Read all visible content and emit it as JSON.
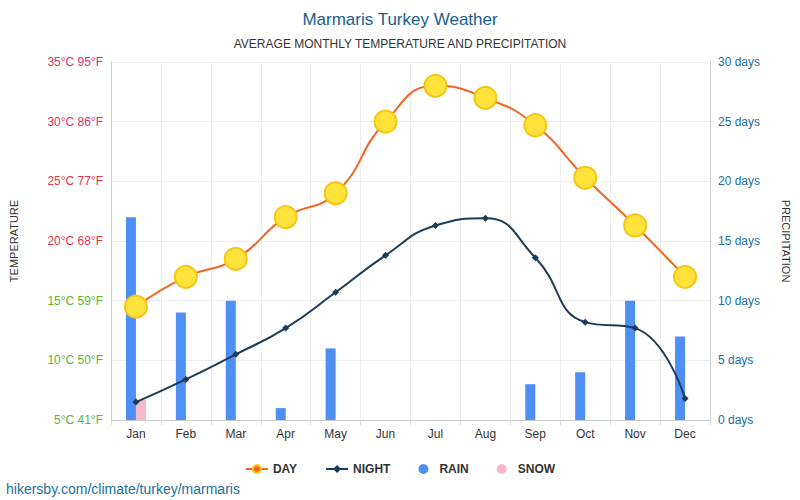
{
  "chart_data": {
    "type": "line",
    "title": "Marmaris Turkey Weather",
    "subtitle": "AVERAGE MONTHLY TEMPERATURE AND PRECIPITATION",
    "ylabel": "TEMPERATURE",
    "y2label": "PRECIPITATION",
    "annotations": [
      "hikersby.com/climate/turkey/marmaris"
    ],
    "categories": [
      "Jan",
      "Feb",
      "Mar",
      "Apr",
      "May",
      "Jun",
      "Jul",
      "Aug",
      "Sep",
      "Oct",
      "Nov",
      "Dec"
    ],
    "series": [
      {
        "name": "DAY",
        "type": "line",
        "color": "#f26522",
        "marker": "circle",
        "line_style": "solid",
        "values": [
          14.5,
          17,
          18.5,
          22,
          24,
          30,
          33,
          32,
          29.7,
          25.3,
          21.3,
          17
        ]
      },
      {
        "name": "NIGHT",
        "type": "line",
        "color": "#1a3c5a",
        "marker": "diamond",
        "line_style": "solid",
        "values": [
          6.5,
          8.4,
          10.5,
          12.7,
          15.7,
          18.8,
          21.3,
          21.9,
          18.6,
          13.2,
          12.7,
          6.8
        ]
      },
      {
        "name": "RAIN",
        "type": "bar",
        "axis": "y2",
        "color": "#4e8ff5",
        "values": [
          17,
          9,
          10,
          1,
          6,
          0,
          0,
          0,
          3,
          4,
          10,
          7
        ]
      },
      {
        "name": "SNOW",
        "type": "bar",
        "axis": "y2",
        "color": "#f7b9c8",
        "values": [
          1.7,
          0,
          0,
          0,
          0,
          0,
          0,
          0,
          0,
          0,
          0,
          0
        ]
      }
    ],
    "ylim": [
      5,
      35
    ],
    "yticks": [
      {
        "value": 5,
        "label": "5°C 41°F"
      },
      {
        "value": 10,
        "label": "10°C 50°F"
      },
      {
        "value": 15,
        "label": "15°C 59°F"
      },
      {
        "value": 20,
        "label": "20°C 68°F"
      },
      {
        "value": 25,
        "label": "25°C 77°F"
      },
      {
        "value": 30,
        "label": "30°C 86°F"
      },
      {
        "value": 35,
        "label": "35°C 95°F"
      }
    ],
    "y2lim": [
      0,
      30
    ],
    "y2ticks": [
      {
        "value": 0,
        "label": "0 days"
      },
      {
        "value": 5,
        "label": "5 days"
      },
      {
        "value": 10,
        "label": "10 days"
      },
      {
        "value": 15,
        "label": "15 days"
      },
      {
        "value": 20,
        "label": "20 days"
      },
      {
        "value": 25,
        "label": "25 days"
      },
      {
        "value": 30,
        "label": "30 days"
      }
    ],
    "grid": true,
    "legend": "bottom"
  }
}
